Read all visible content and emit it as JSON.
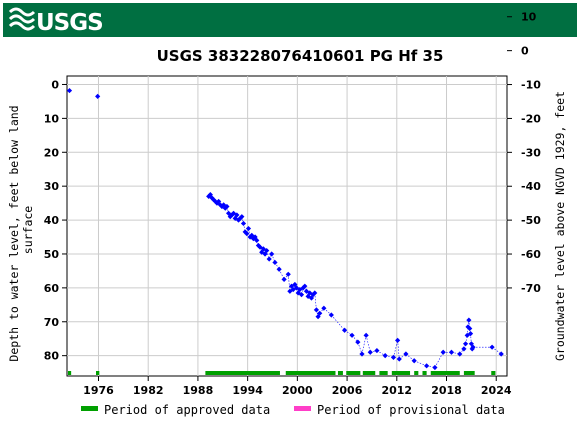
{
  "header": {
    "logo_text": "USGS",
    "band_color": "#006f41"
  },
  "chart_data": {
    "type": "scatter",
    "title": "USGS 383228076410601 PG Hf  35",
    "ylabel_left": "Depth to water level, feet below land surface",
    "ylabel_right": "Groundwater level above NGVD 1929, feet",
    "xlim": [
      1972.2,
      2025.3
    ],
    "ylim_left": [
      -2.5,
      86
    ],
    "ylim_right": [
      10.5,
      -78
    ],
    "right_offset": -9.98,
    "x_ticks": [
      1976,
      1982,
      1988,
      1994,
      2000,
      2006,
      2012,
      2018,
      2024
    ],
    "y_ticks_left": [
      0,
      10,
      20,
      30,
      40,
      50,
      60,
      70,
      80
    ],
    "y_ticks_right": [
      10,
      0,
      -10,
      -20,
      -30,
      -40,
      -50,
      -60,
      -70
    ],
    "grid": true,
    "point_color": "#0000ff",
    "series": [
      {
        "values": [
          [
            1972.5,
            1.8
          ],
          [
            1975.9,
            3.5
          ],
          [
            1989.3,
            33.0
          ],
          [
            1989.5,
            32.5
          ],
          [
            1989.7,
            33.5
          ],
          [
            1989.9,
            34.0
          ],
          [
            1990.1,
            34.5
          ],
          [
            1990.3,
            35.0
          ],
          [
            1990.5,
            34.5
          ],
          [
            1990.7,
            35.5
          ],
          [
            1990.9,
            36.0
          ],
          [
            1991.1,
            35.5
          ],
          [
            1991.3,
            36.5
          ],
          [
            1991.5,
            36.0
          ],
          [
            1991.7,
            38.0
          ],
          [
            1991.9,
            39.0
          ],
          [
            1992.1,
            38.5
          ],
          [
            1992.3,
            38.0
          ],
          [
            1992.5,
            39.5
          ],
          [
            1992.7,
            38.5
          ],
          [
            1992.9,
            40.0
          ],
          [
            1993.1,
            39.5
          ],
          [
            1993.3,
            39.0
          ],
          [
            1993.5,
            41.0
          ],
          [
            1993.7,
            43.5
          ],
          [
            1993.9,
            44.0
          ],
          [
            1994.1,
            42.5
          ],
          [
            1994.3,
            45.0
          ],
          [
            1994.5,
            44.5
          ],
          [
            1994.7,
            45.5
          ],
          [
            1994.9,
            45.0
          ],
          [
            1995.1,
            46.0
          ],
          [
            1995.3,
            47.5
          ],
          [
            1995.5,
            48.0
          ],
          [
            1995.7,
            49.5
          ],
          [
            1995.9,
            48.5
          ],
          [
            1996.1,
            50.0
          ],
          [
            1996.3,
            49.0
          ],
          [
            1996.6,
            51.5
          ],
          [
            1996.9,
            50.0
          ],
          [
            1997.3,
            52.5
          ],
          [
            1997.8,
            54.5
          ],
          [
            1998.4,
            57.5
          ],
          [
            1998.9,
            56.0
          ],
          [
            1999.1,
            61.0
          ],
          [
            1999.3,
            59.5
          ],
          [
            1999.5,
            60.5
          ],
          [
            1999.7,
            59.0
          ],
          [
            1999.9,
            60.0
          ],
          [
            2000.1,
            61.5
          ],
          [
            2000.3,
            60.5
          ],
          [
            2000.5,
            62.0
          ],
          [
            2000.7,
            60.0
          ],
          [
            2000.9,
            59.5
          ],
          [
            2001.1,
            61.0
          ],
          [
            2001.3,
            62.5
          ],
          [
            2001.5,
            61.5
          ],
          [
            2001.7,
            63.0
          ],
          [
            2001.9,
            62.0
          ],
          [
            2002.1,
            61.5
          ],
          [
            2002.3,
            66.5
          ],
          [
            2002.5,
            68.5
          ],
          [
            2002.7,
            67.5
          ],
          [
            2003.2,
            66.0
          ],
          [
            2004.1,
            68.0
          ],
          [
            2005.7,
            72.5
          ],
          [
            2006.6,
            74.0
          ],
          [
            2007.3,
            76.0
          ],
          [
            2007.8,
            79.5
          ],
          [
            2008.3,
            74.0
          ],
          [
            2008.8,
            79.0
          ],
          [
            2009.6,
            78.5
          ],
          [
            2010.6,
            80.0
          ],
          [
            2011.6,
            80.5
          ],
          [
            2012.1,
            75.5
          ],
          [
            2012.3,
            81.0
          ],
          [
            2013.1,
            79.5
          ],
          [
            2014.1,
            81.5
          ],
          [
            2015.6,
            83.0
          ],
          [
            2016.6,
            83.5
          ],
          [
            2017.6,
            79.0
          ],
          [
            2018.6,
            79.0
          ],
          [
            2019.6,
            79.5
          ],
          [
            2020.1,
            78.0
          ],
          [
            2020.3,
            76.5
          ],
          [
            2020.5,
            74.0
          ],
          [
            2020.6,
            71.5
          ],
          [
            2020.7,
            69.5
          ],
          [
            2020.8,
            72.0
          ],
          [
            2020.9,
            73.5
          ],
          [
            2021.0,
            76.5
          ],
          [
            2021.1,
            78.0
          ],
          [
            2021.2,
            77.5
          ],
          [
            2023.5,
            77.5
          ],
          [
            2024.6,
            79.5
          ]
        ]
      }
    ],
    "approved_periods": [
      [
        1972.2,
        1972.7
      ],
      [
        1975.7,
        1976.1
      ],
      [
        1988.9,
        1997.9
      ],
      [
        1998.6,
        2004.6
      ],
      [
        2004.9,
        2005.5
      ],
      [
        2005.9,
        2007.6
      ],
      [
        2007.9,
        2009.4
      ],
      [
        2009.9,
        2010.9
      ],
      [
        2011.4,
        2013.6
      ],
      [
        2014.1,
        2014.6
      ],
      [
        2015.1,
        2015.6
      ],
      [
        2016.1,
        2019.6
      ],
      [
        2020.1,
        2021.4
      ],
      [
        2023.4,
        2023.9
      ]
    ],
    "legend": {
      "approved_label": "Period of approved data",
      "provisional_label": "Period of provisional data",
      "approved_color": "#00a000",
      "provisional_color": "#ff3ec8",
      "placement": "bottom"
    }
  }
}
